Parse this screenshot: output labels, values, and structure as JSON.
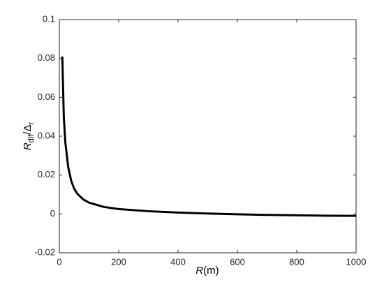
{
  "chart_data": {
    "type": "line",
    "x_label": [
      "R",
      "(m)"
    ],
    "y_label": [
      "R",
      "dif",
      "/Δ",
      "r"
    ],
    "x": [
      10,
      15,
      20,
      30,
      40,
      50,
      60,
      80,
      100,
      150,
      200,
      300,
      400,
      500,
      600,
      700,
      800,
      900,
      1000
    ],
    "series": [
      {
        "color": "#000000",
        "values": [
          0.081,
          0.05,
          0.037,
          0.024,
          0.017,
          0.013,
          0.0105,
          0.0075,
          0.0058,
          0.0036,
          0.0025,
          0.0014,
          0.0007,
          0.0002,
          -0.0002,
          -0.0005,
          -0.0007,
          -0.0009,
          -0.001
        ]
      }
    ],
    "xlim": [
      0,
      1000
    ],
    "xticks": [
      0,
      200,
      400,
      600,
      800,
      1000
    ],
    "ylim": [
      -0.02,
      0.1
    ],
    "yticks": [
      -0.02,
      0,
      0.02,
      0.04,
      0.06,
      0.08,
      0.1
    ],
    "grid": false
  }
}
